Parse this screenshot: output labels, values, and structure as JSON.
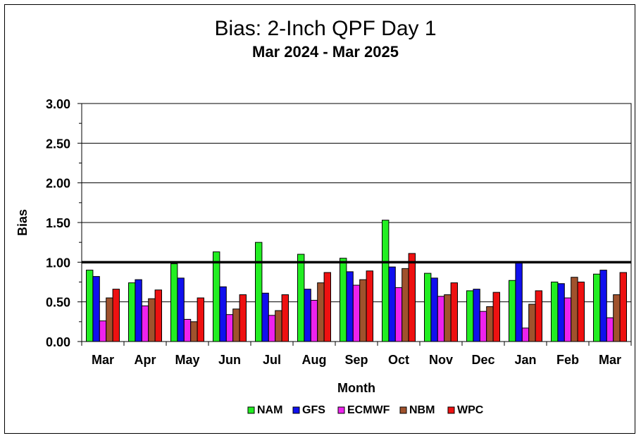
{
  "chart_data": {
    "type": "bar",
    "title": "Bias:  2-Inch QPF Day 1",
    "subtitle": "Mar 2024 - Mar 2025",
    "xlabel": "Month",
    "ylabel": "Bias",
    "ylim": [
      0,
      3
    ],
    "yticks": [
      "0.00",
      "0.50",
      "1.00",
      "1.50",
      "2.00",
      "2.50",
      "3.00"
    ],
    "reference_line": 1.0,
    "grid": true,
    "legend_position": "bottom",
    "categories": [
      "Mar",
      "Apr",
      "May",
      "Jun",
      "Jul",
      "Aug",
      "Sep",
      "Oct",
      "Nov",
      "Dec",
      "Jan",
      "Feb",
      "Mar"
    ],
    "series": [
      {
        "name": "NAM",
        "color": "#22ee22",
        "values": [
          0.9,
          0.74,
          0.98,
          1.13,
          1.25,
          1.1,
          1.05,
          1.53,
          0.86,
          0.64,
          0.77,
          0.75,
          0.85
        ]
      },
      {
        "name": "GFS",
        "color": "#1010ee",
        "values": [
          0.82,
          0.78,
          0.8,
          0.69,
          0.61,
          0.66,
          0.88,
          0.94,
          0.8,
          0.66,
          0.99,
          0.73,
          0.9
        ]
      },
      {
        "name": "ECMWF",
        "color": "#ee22ee",
        "values": [
          0.26,
          0.45,
          0.28,
          0.34,
          0.33,
          0.52,
          0.71,
          0.68,
          0.57,
          0.38,
          0.17,
          0.55,
          0.3
        ]
      },
      {
        "name": "NBM",
        "color": "#a0522d",
        "values": [
          0.55,
          0.54,
          0.25,
          0.41,
          0.39,
          0.74,
          0.78,
          0.92,
          0.59,
          0.44,
          0.47,
          0.81,
          0.59
        ]
      },
      {
        "name": "WPC",
        "color": "#ee1111",
        "values": [
          0.66,
          0.65,
          0.55,
          0.59,
          0.59,
          0.87,
          0.89,
          1.11,
          0.74,
          0.62,
          0.64,
          0.75,
          0.87
        ]
      }
    ]
  }
}
